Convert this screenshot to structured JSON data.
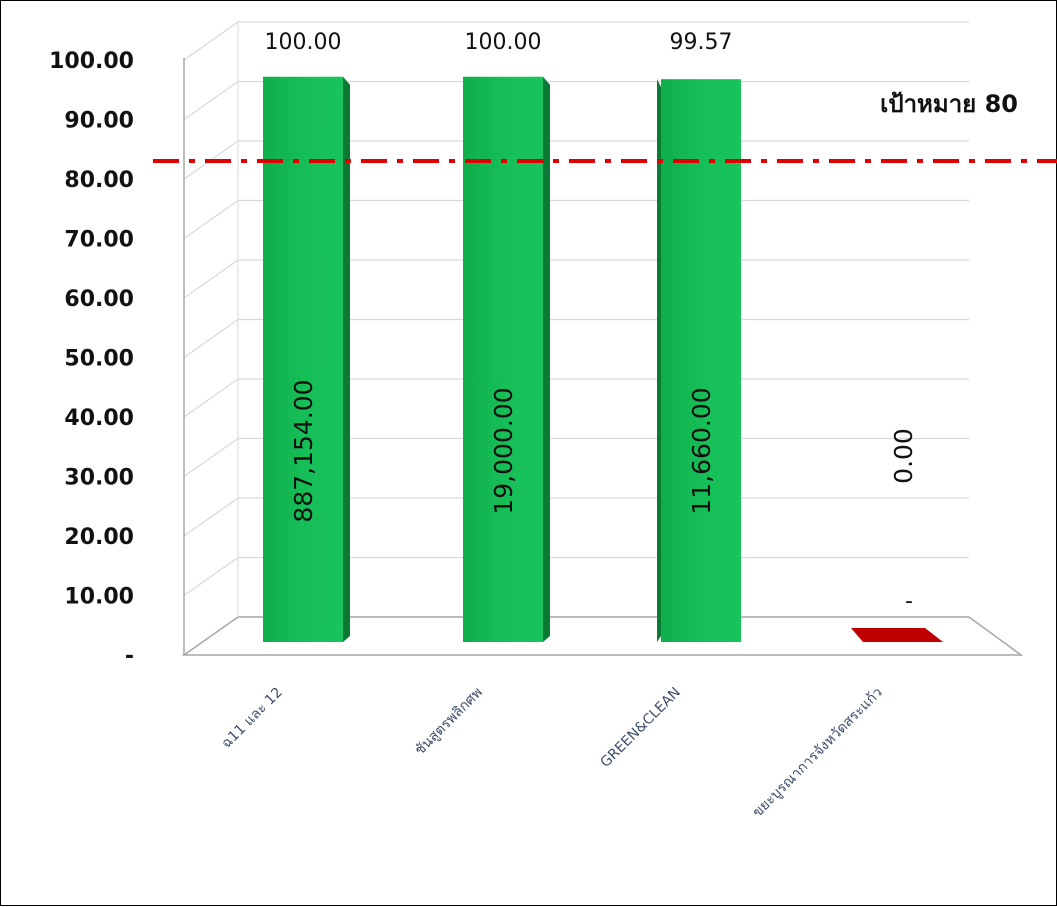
{
  "chart_data": {
    "type": "bar",
    "categories": [
      "ฉ11 และ 12",
      "ชันสูตรพลิกศพ",
      "GREEN&CLEAN",
      "ขยะบูรณาการจังหวัดสระแก้ว"
    ],
    "values": [
      100.0,
      100.0,
      99.57,
      0
    ],
    "value_labels": [
      "100.00",
      "100.00",
      "99.57",
      "-"
    ],
    "inner_labels": [
      "887,154.00",
      "19,000.00",
      "11,660.00",
      "0.00"
    ],
    "ylim": [
      0,
      100
    ],
    "ytick_labels": [
      "-",
      "10.00",
      "20.00",
      "30.00",
      "40.00",
      "50.00",
      "60.00",
      "70.00",
      "80.00",
      "90.00",
      "100.00"
    ],
    "target": {
      "value": 80,
      "label": "เป้าหมาย 80"
    },
    "grid": true,
    "colors": {
      "bar": "#12b24f",
      "bar_side": "#0a7a34",
      "zero_bar": "#c00000",
      "target_line": "#e00000",
      "grid": "#d9d9d9"
    }
  }
}
